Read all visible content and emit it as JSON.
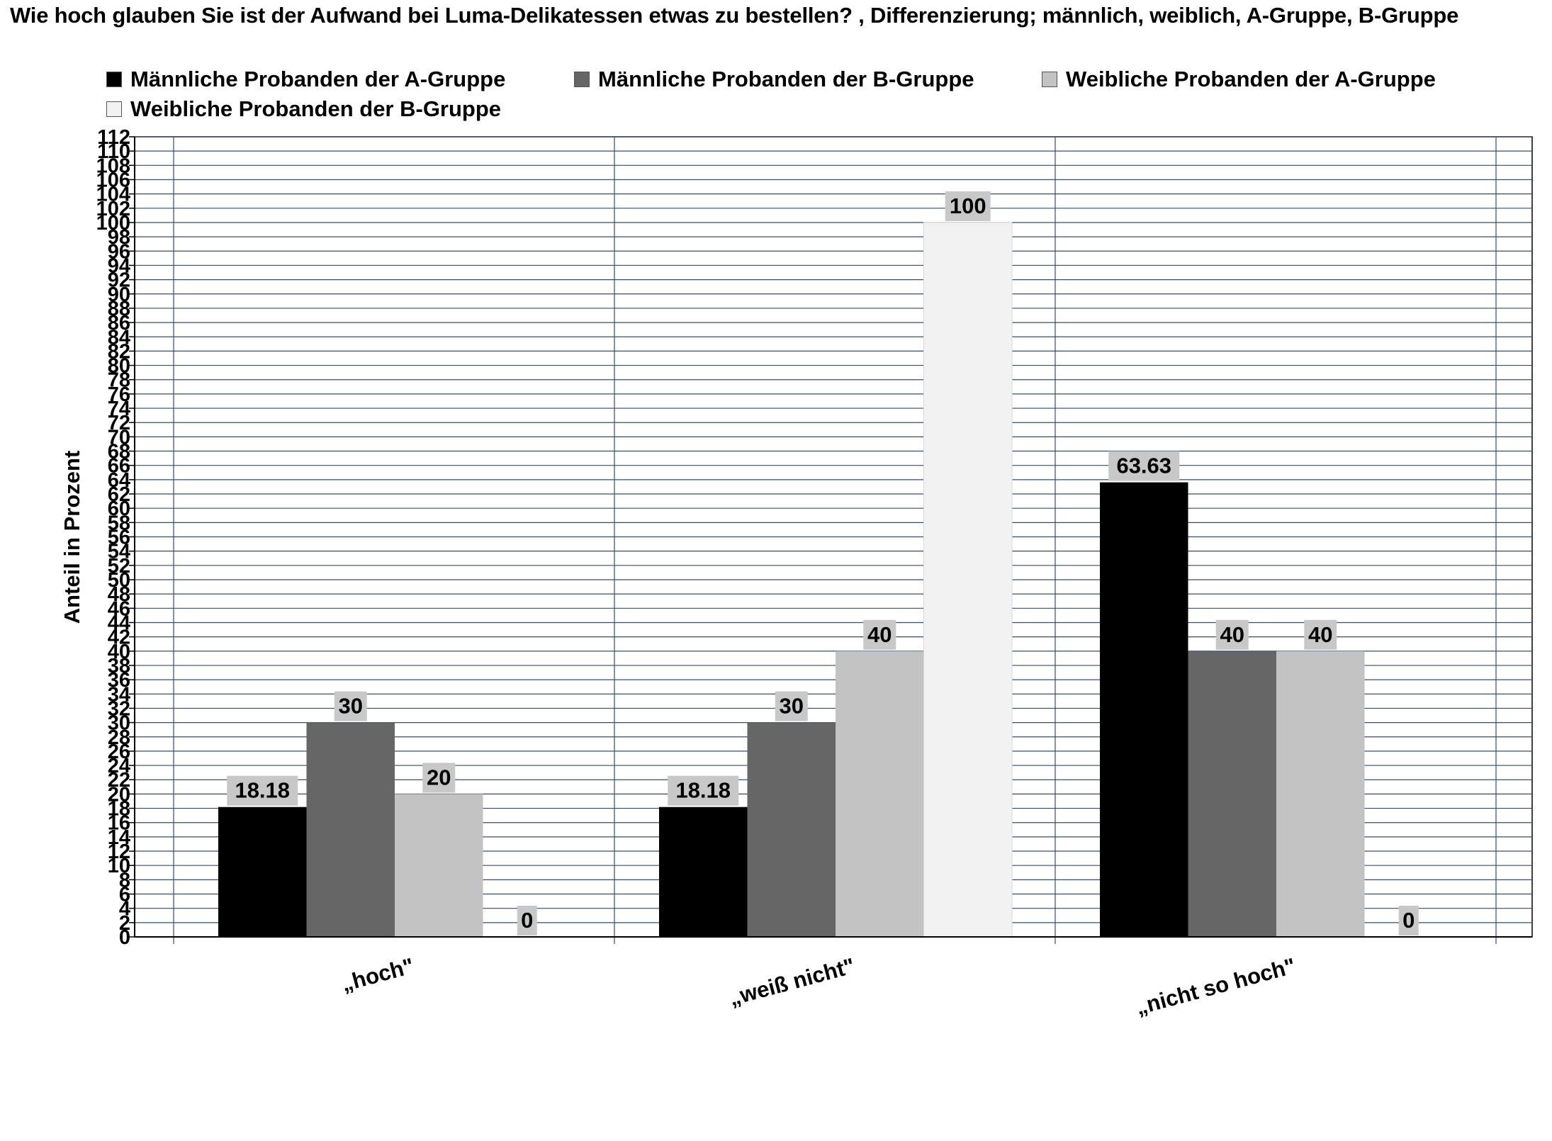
{
  "chart_data": {
    "type": "bar",
    "title": "Wie hoch glauben Sie ist der Aufwand bei Luma-Delikatessen etwas zu bestellen? , Differenzierung; männlich, weiblich, A-Gruppe, B-Gruppe",
    "xlabel": "",
    "ylabel": "Anteil in Prozent",
    "ylim": [
      0,
      112
    ],
    "ytick_step": 2,
    "categories": [
      "„hoch\"",
      "„weiß nicht\"",
      "„nicht so hoch\""
    ],
    "series": [
      {
        "name": "Männliche Probanden der A-Gruppe",
        "color": "#000000",
        "values": [
          18.18,
          18.18,
          63.63
        ]
      },
      {
        "name": "Männliche Probanden der B-Gruppe",
        "color": "#666666",
        "values": [
          30,
          30,
          40
        ]
      },
      {
        "name": "Weibliche Probanden der A-Gruppe",
        "color": "#c3c3c3",
        "values": [
          20,
          40,
          40
        ]
      },
      {
        "name": "Weibliche Probanden der B-Gruppe",
        "color": "#f2f2f2",
        "values": [
          0,
          100,
          0
        ]
      }
    ],
    "grid": true,
    "gridline_color": "#2f4f6f",
    "data_label_background": "#c8c8c8",
    "legend_position": "top-left"
  }
}
